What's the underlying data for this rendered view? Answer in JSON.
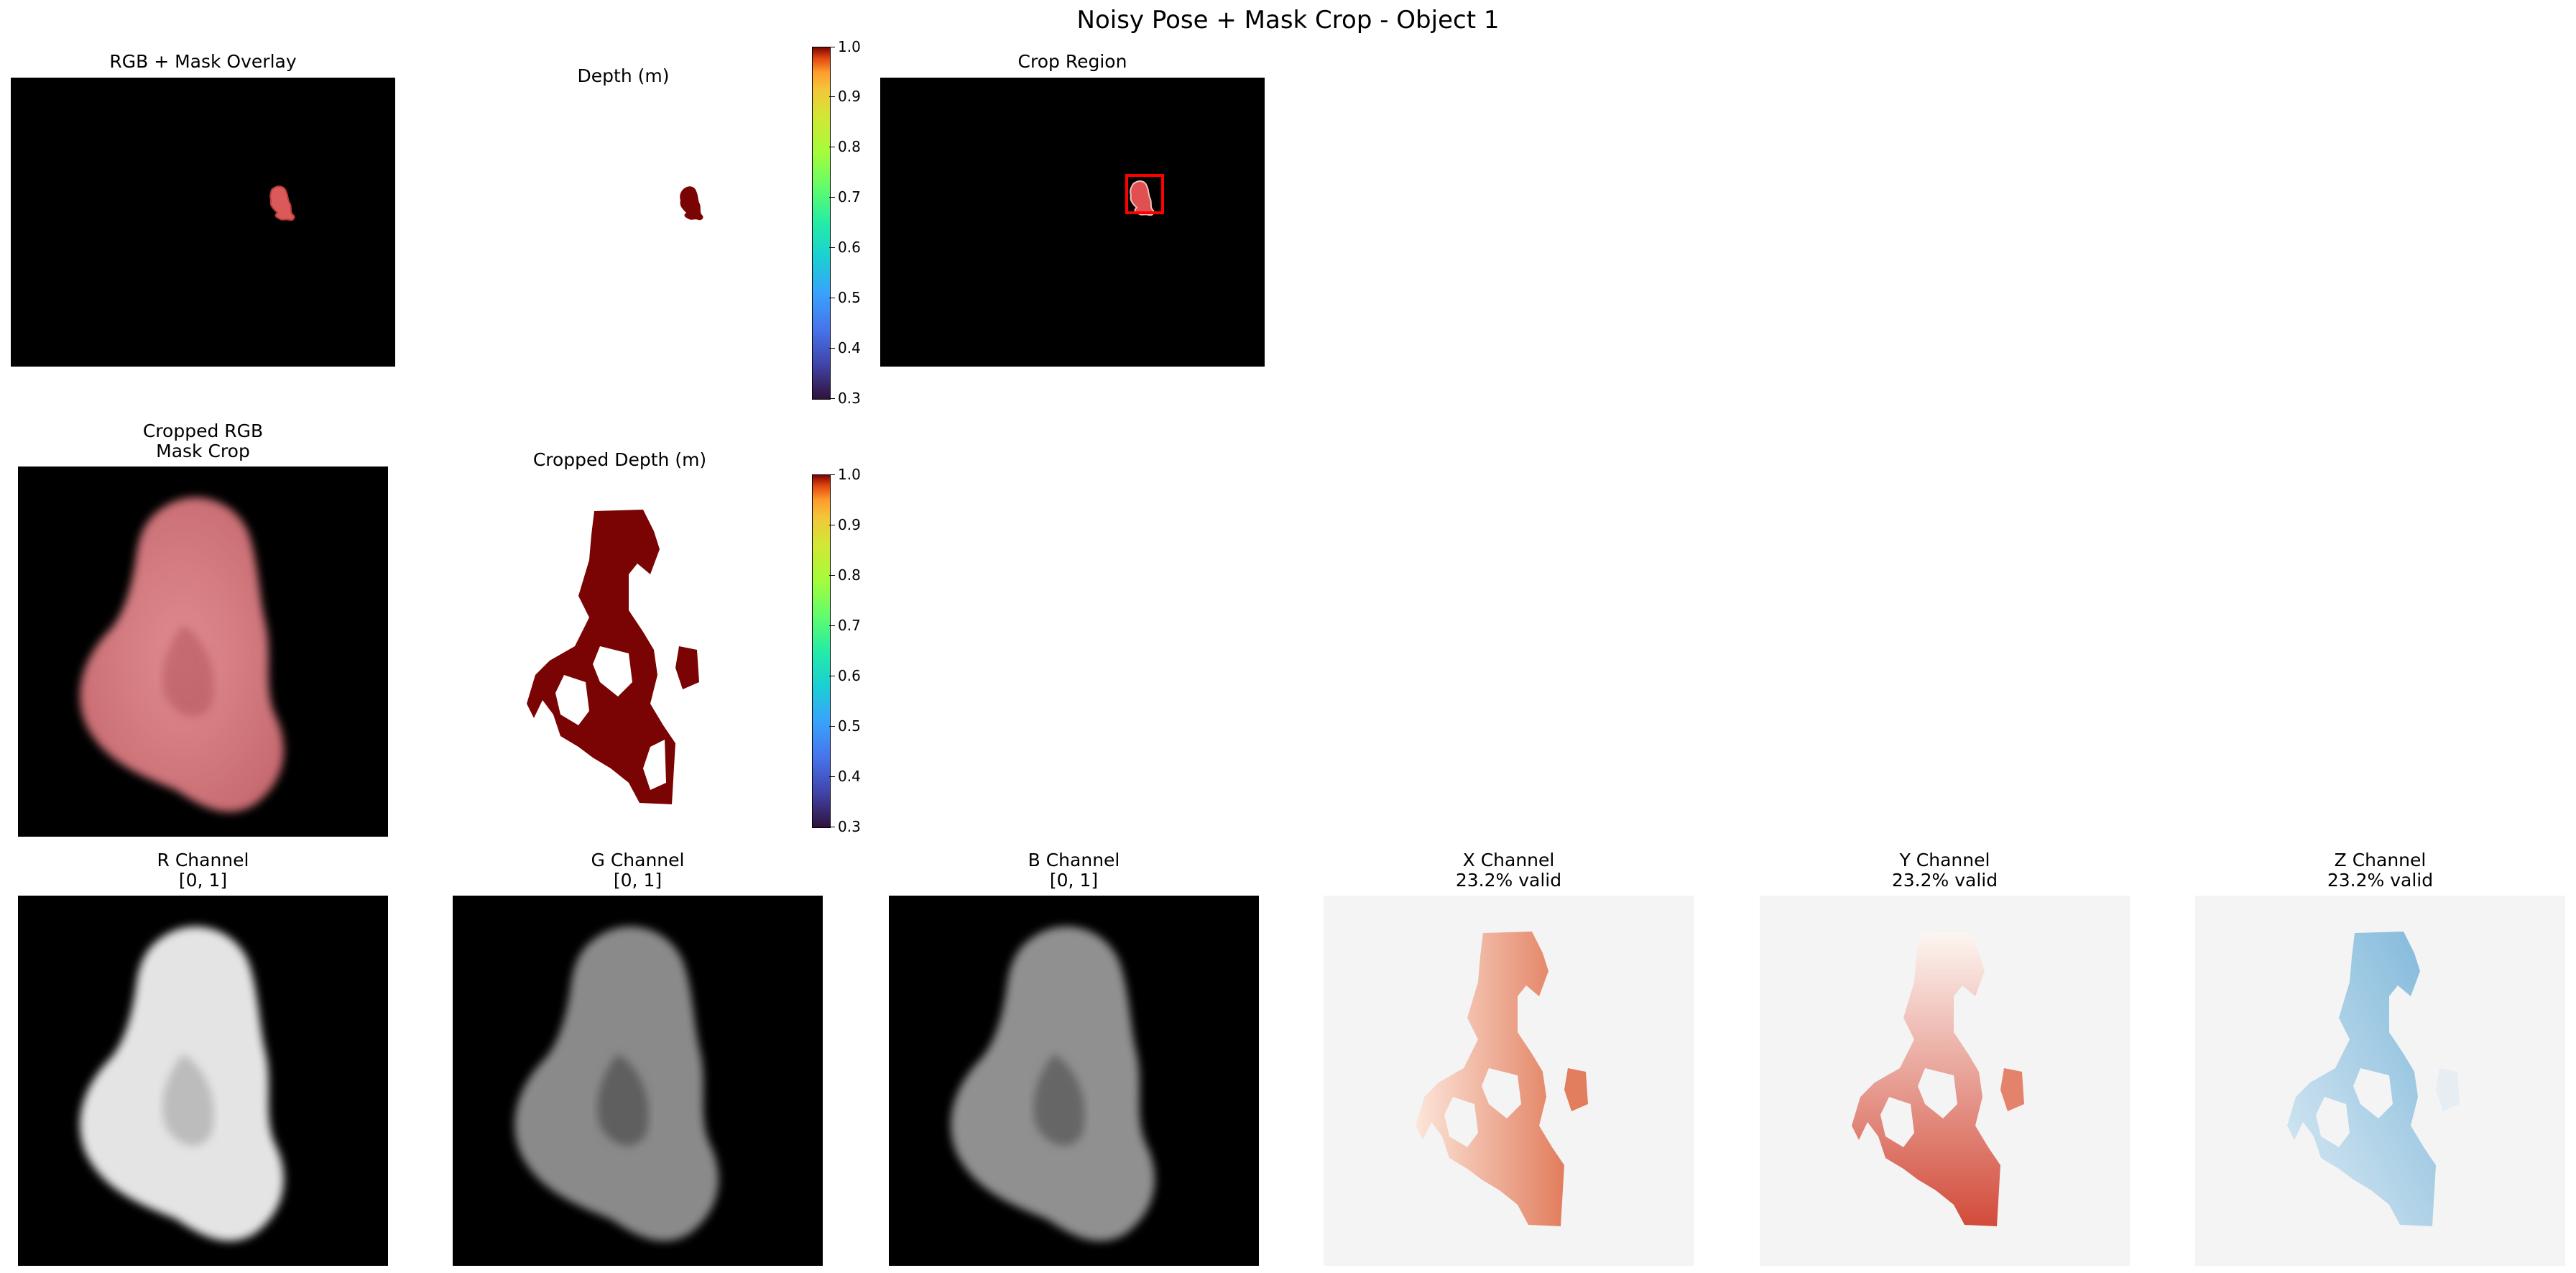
{
  "figure_title": "Noisy Pose + Mask Crop - Object 1",
  "panels": {
    "rgb_overlay": {
      "title": "RGB + Mask Overlay"
    },
    "depth": {
      "title": "Depth (m)"
    },
    "crop_region": {
      "title": "Crop Region"
    },
    "cropped_rgb": {
      "title": "Cropped RGB",
      "subtitle": "Mask Crop"
    },
    "cropped_depth": {
      "title": "Cropped Depth (m)"
    },
    "r_channel": {
      "title": "R Channel",
      "subtitle": "[0, 1]"
    },
    "g_channel": {
      "title": "G Channel",
      "subtitle": "[0, 1]"
    },
    "b_channel": {
      "title": "B Channel",
      "subtitle": "[0, 1]"
    },
    "x_channel": {
      "title": "X Channel",
      "subtitle": "23.2% valid"
    },
    "y_channel": {
      "title": "Y Channel",
      "subtitle": "23.2% valid"
    },
    "z_channel": {
      "title": "Z Channel",
      "subtitle": "23.2% valid"
    }
  },
  "colorbar": {
    "colormap": "turbo",
    "ticks": [
      "1.0",
      "0.9",
      "0.8",
      "0.7",
      "0.6",
      "0.5",
      "0.4",
      "0.3"
    ],
    "range": [
      0.3,
      1.0
    ]
  },
  "colors": {
    "object_rgb": "#d9868a",
    "depth_object": "#7a0403",
    "crop_box": "#ff0000",
    "x_map_light": "#fbe3d6",
    "x_map_dark": "#e07b5a",
    "y_map_light": "#fdf2ec",
    "y_map_dark": "#d24b3a",
    "z_map_light": "#d4e7f2",
    "z_map_dark": "#7fb8da"
  }
}
